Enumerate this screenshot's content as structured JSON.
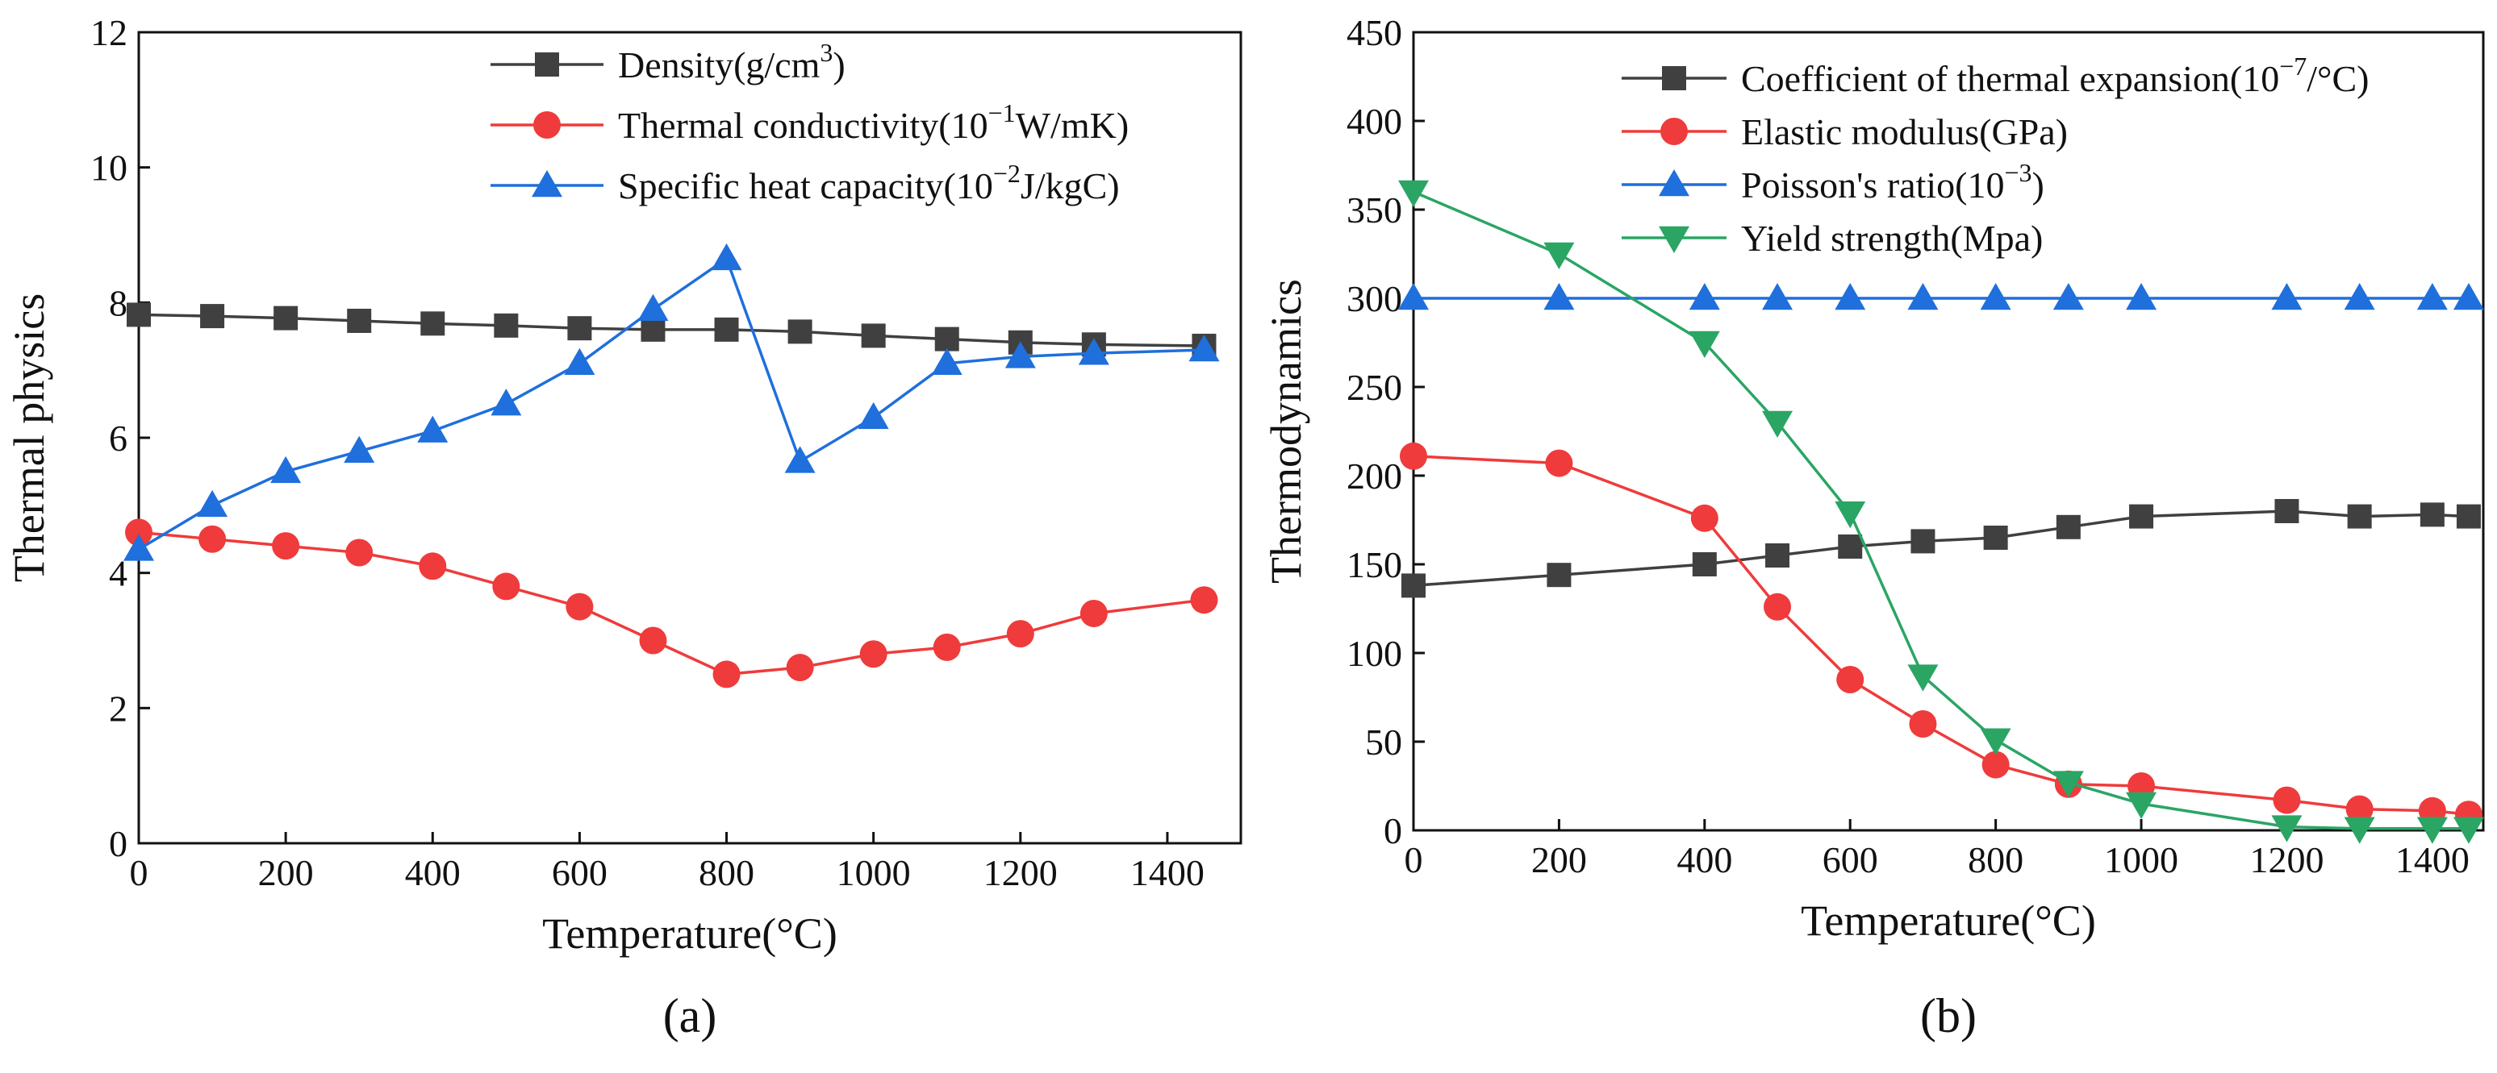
{
  "chart_data": [
    {
      "type": "line",
      "panel_label": "(a)",
      "xlabel": "Temperature(°C)",
      "ylabel": "Thermal physics",
      "xlim": [
        0,
        1500
      ],
      "ylim": [
        0,
        12
      ],
      "xticks": [
        0,
        200,
        400,
        600,
        800,
        1000,
        1200,
        1400
      ],
      "yticks": [
        0,
        2,
        4,
        6,
        8,
        10,
        12
      ],
      "legend_position": "top-right",
      "series": [
        {
          "name": "Density(g/cm3)",
          "legend_parts": [
            "Density(g/cm",
            "3",
            ")"
          ],
          "color": "#404040",
          "marker": "square",
          "x": [
            0,
            100,
            200,
            300,
            400,
            500,
            600,
            700,
            800,
            900,
            1000,
            1100,
            1200,
            1300,
            1450
          ],
          "values": [
            7.82,
            7.8,
            7.77,
            7.73,
            7.69,
            7.66,
            7.62,
            7.6,
            7.6,
            7.57,
            7.51,
            7.46,
            7.41,
            7.38,
            7.36
          ]
        },
        {
          "name": "Thermal conductivity(10−1W/mK)",
          "legend_parts": [
            "Thermal conductivity(10",
            "−1",
            "W/mK)"
          ],
          "color": "#ef3b3b",
          "marker": "circle",
          "x": [
            0,
            100,
            200,
            300,
            400,
            500,
            600,
            700,
            800,
            900,
            1000,
            1100,
            1200,
            1300,
            1450
          ],
          "values": [
            4.6,
            4.5,
            4.4,
            4.3,
            4.1,
            3.8,
            3.5,
            3.0,
            2.5,
            2.6,
            2.8,
            2.9,
            3.1,
            3.4,
            3.6
          ]
        },
        {
          "name": "Specific heat capacity(10−2J/kgC)",
          "legend_parts": [
            "Specific heat capacity(10",
            "−2",
            "J/kgC)"
          ],
          "color": "#1f6fdc",
          "marker": "triangle-up",
          "x": [
            0,
            100,
            200,
            300,
            400,
            500,
            600,
            700,
            800,
            900,
            1000,
            1100,
            1200,
            1300,
            1450
          ],
          "values": [
            4.35,
            5.0,
            5.5,
            5.8,
            6.1,
            6.5,
            7.1,
            7.9,
            8.65,
            5.65,
            6.3,
            7.1,
            7.2,
            7.25,
            7.3
          ]
        }
      ]
    },
    {
      "type": "line",
      "panel_label": "(b)",
      "xlabel": "Temperature(°C)",
      "ylabel": "Thermodynamics",
      "xlim": [
        0,
        1470
      ],
      "ylim": [
        0,
        450
      ],
      "xticks": [
        0,
        200,
        400,
        600,
        800,
        1000,
        1200,
        1400
      ],
      "yticks": [
        0,
        50,
        100,
        150,
        200,
        250,
        300,
        350,
        400,
        450
      ],
      "legend_position": "top-right",
      "series": [
        {
          "name": "Coefficient of thermal expansion(10−7/°C)",
          "legend_parts": [
            "Coefficient of thermal expansion(10",
            "−7",
            "/°C)"
          ],
          "color": "#404040",
          "marker": "square",
          "x": [
            0,
            200,
            400,
            500,
            600,
            700,
            800,
            900,
            1000,
            1200,
            1300,
            1400,
            1450
          ],
          "values": [
            138,
            144,
            150,
            155,
            160,
            163,
            165,
            171,
            177,
            180,
            177,
            178,
            177
          ]
        },
        {
          "name": "Elastic modulus(GPa)",
          "legend_parts": [
            "Elastic modulus(GPa)",
            "",
            ""
          ],
          "color": "#ef3b3b",
          "marker": "circle",
          "x": [
            0,
            200,
            400,
            500,
            600,
            700,
            800,
            900,
            1000,
            1200,
            1300,
            1400,
            1450
          ],
          "values": [
            211,
            207,
            176,
            126,
            85,
            60,
            37,
            26,
            25,
            17,
            12,
            11,
            9
          ]
        },
        {
          "name": "Poisson's ratio(10−3)",
          "legend_parts": [
            "Poisson's ratio(10",
            "−3",
            ")"
          ],
          "color": "#1f6fdc",
          "marker": "triangle-up",
          "x": [
            0,
            200,
            400,
            500,
            600,
            700,
            800,
            900,
            1000,
            1200,
            1300,
            1400,
            1450
          ],
          "values": [
            300,
            300,
            300,
            300,
            300,
            300,
            300,
            300,
            300,
            300,
            300,
            300,
            300
          ]
        },
        {
          "name": "Yield strength(Mpa)",
          "legend_parts": [
            "Yield strength(Mpa)",
            "",
            ""
          ],
          "color": "#2aa564",
          "marker": "triangle-down",
          "x": [
            0,
            200,
            400,
            500,
            600,
            700,
            800,
            900,
            1000,
            1200,
            1300,
            1400,
            1450
          ],
          "values": [
            360,
            325,
            275,
            230,
            179,
            87,
            51,
            27,
            15,
            2,
            1,
            1,
            1
          ]
        }
      ]
    }
  ]
}
